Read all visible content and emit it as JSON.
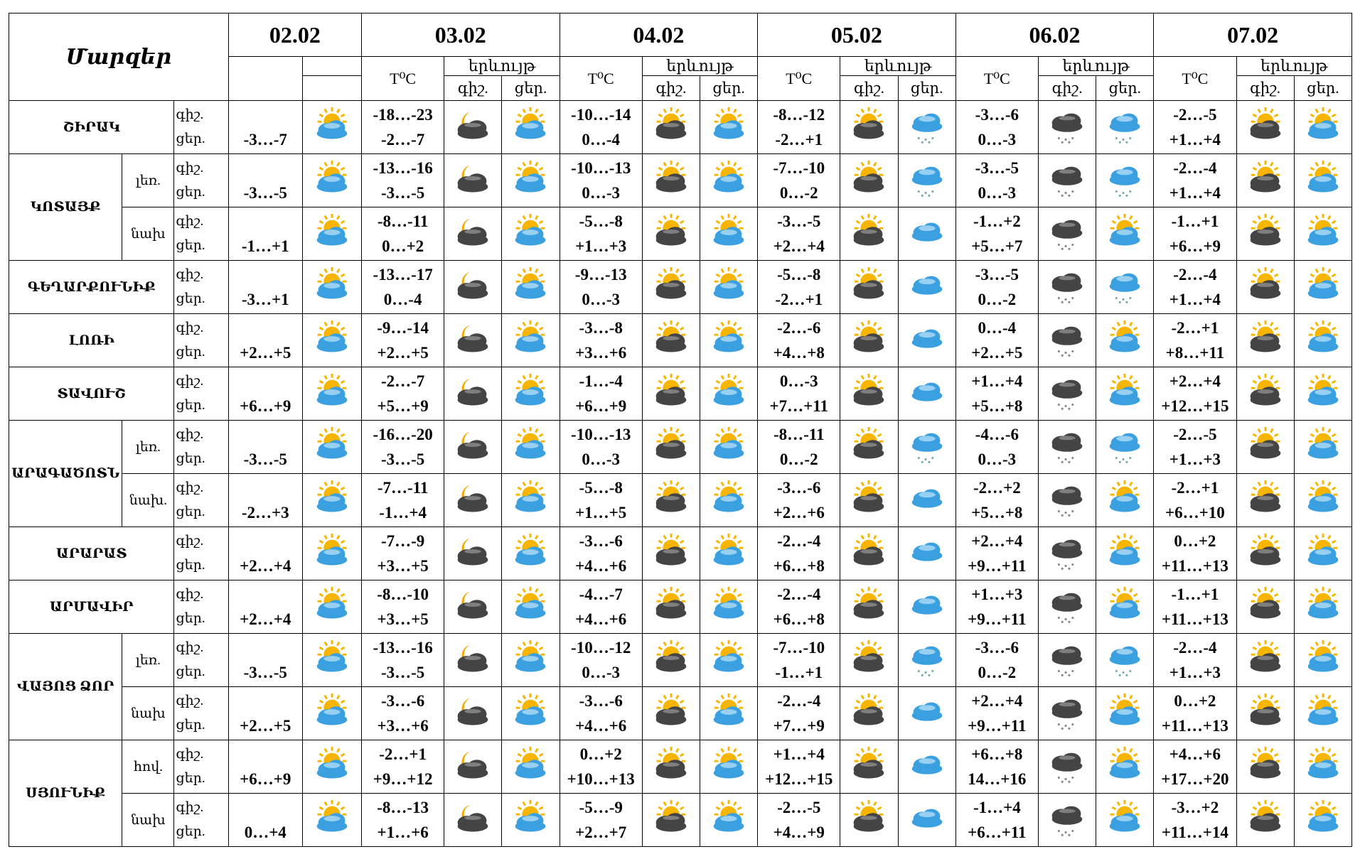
{
  "header": {
    "title": "Մարզեր",
    "dates": [
      "02.02",
      "03.02",
      "04.02",
      "05.02",
      "06.02",
      "07.02"
    ],
    "temp": "T⁰C",
    "phenomenon": "երևույթ",
    "night": "գիշ.",
    "day": "ցեր."
  },
  "regions": [
    {
      "name": "ՇԻՐԱԿ",
      "rows": [
        {
          "sub": null,
          "d0": "-3…-7",
          "days": [
            [
              "-18…-23",
              "-2…-7"
            ],
            [
              "-10…-14",
              "0…-4"
            ],
            [
              "-8…-12",
              "-2…+1"
            ],
            [
              "-3…-6",
              "0…-3"
            ],
            [
              "-2…-5",
              "+1…+4"
            ]
          ]
        }
      ]
    },
    {
      "name": "ԿՈՏԱՅՔ",
      "rows": [
        {
          "sub": "լեռ.",
          "d0": "-3…-5",
          "days": [
            [
              "-13…-16",
              "-3…-5"
            ],
            [
              "-10…-13",
              "0…-3"
            ],
            [
              "-7…-10",
              "0…-2"
            ],
            [
              "-3…-5",
              "0…-3"
            ],
            [
              "-2…-4",
              "+1…+4"
            ]
          ]
        },
        {
          "sub": "նախ",
          "d0": "-1…+1",
          "days": [
            [
              "-8…-11",
              "0…+2"
            ],
            [
              "-5…-8",
              "+1…+3"
            ],
            [
              "-3…-5",
              "+2…+4"
            ],
            [
              "-1…+2",
              "+5…+7"
            ],
            [
              "-1…+1",
              "+6…+9"
            ]
          ]
        }
      ]
    },
    {
      "name": "ԳԵՂԱՐՔՈՒՆԻՔ",
      "rows": [
        {
          "sub": null,
          "d0": "-3…+1",
          "days": [
            [
              "-13…-17",
              "0…-4"
            ],
            [
              "-9…-13",
              "0…-3"
            ],
            [
              "-5…-8",
              "-2…+1"
            ],
            [
              "-3…-5",
              "0…-2"
            ],
            [
              "-2…-4",
              "+1…+4"
            ]
          ]
        }
      ]
    },
    {
      "name": "ԼՈՌԻ",
      "rows": [
        {
          "sub": null,
          "d0": "+2…+5",
          "days": [
            [
              "-9…-14",
              "+2…+5"
            ],
            [
              "-3…-8",
              "+3…+6"
            ],
            [
              "-2…-6",
              "+4…+8"
            ],
            [
              "0…-4",
              "+2…+5"
            ],
            [
              "-2…+1",
              "+8…+11"
            ]
          ]
        }
      ]
    },
    {
      "name": "ՏԱՎՈՒՇ",
      "rows": [
        {
          "sub": null,
          "d0": "+6…+9",
          "days": [
            [
              "-2…-7",
              "+5…+9"
            ],
            [
              "-1…-4",
              "+6…+9"
            ],
            [
              "0…-3",
              "+7…+11"
            ],
            [
              "+1…+4",
              "+5…+8"
            ],
            [
              "+2…+4",
              "+12…+15"
            ]
          ]
        }
      ]
    },
    {
      "name": "ԱՐԱԳԱԾՈՏՆ",
      "rows": [
        {
          "sub": "լեռ.",
          "d0": "-3…-5",
          "days": [
            [
              "-16…-20",
              "-3…-5"
            ],
            [
              "-10…-13",
              "0…-3"
            ],
            [
              "-8…-11",
              "0…-2"
            ],
            [
              "-4…-6",
              "0…-3"
            ],
            [
              "-2…-5",
              "+1…+3"
            ]
          ]
        },
        {
          "sub": "նախ.",
          "d0": "-2…+3",
          "days": [
            [
              "-7…-11",
              "-1…+4"
            ],
            [
              "-5…-8",
              "+1…+5"
            ],
            [
              "-3…-6",
              "+2…+6"
            ],
            [
              "-2…+2",
              "+5…+8"
            ],
            [
              "-2…+1",
              "+6…+10"
            ]
          ]
        }
      ]
    },
    {
      "name": "ԱՐԱՐԱՏ",
      "rows": [
        {
          "sub": null,
          "d0": "+2…+4",
          "days": [
            [
              "-7…-9",
              "+3…+5"
            ],
            [
              "-3…-6",
              "+4…+6"
            ],
            [
              "-2…-4",
              "+6…+8"
            ],
            [
              "+2…+4",
              "+9…+11"
            ],
            [
              "0…+2",
              "+11…+13"
            ]
          ]
        }
      ]
    },
    {
      "name": "ԱՐՄԱՎԻՐ",
      "rows": [
        {
          "sub": null,
          "d0": "+2…+4",
          "days": [
            [
              "-8…-10",
              "+3…+5"
            ],
            [
              "-4…-7",
              "+4…+6"
            ],
            [
              "-2…-4",
              "+6…+8"
            ],
            [
              "+1…+3",
              "+9…+11"
            ],
            [
              "-1…+1",
              "+11…+13"
            ]
          ]
        }
      ]
    },
    {
      "name": "ՎԱՅՈՑ ՁՈՐ",
      "rows": [
        {
          "sub": "լեռ.",
          "d0": "-3…-5",
          "days": [
            [
              "-13…-16",
              "-3…-5"
            ],
            [
              "-10…-12",
              "0…-3"
            ],
            [
              "-7…-10",
              "-1…+1"
            ],
            [
              "-3…-6",
              "0…-2"
            ],
            [
              "-2…-4",
              "+1…+3"
            ]
          ]
        },
        {
          "sub": "նախ",
          "d0": "+2…+5",
          "days": [
            [
              "-3…-6",
              "+3…+6"
            ],
            [
              "-3…-6",
              "+4…+6"
            ],
            [
              "-2…-4",
              "+7…+9"
            ],
            [
              "+2…+4",
              "+9…+11"
            ],
            [
              "0…+2",
              "+11…+13"
            ]
          ]
        }
      ]
    },
    {
      "name": "ՍՅՈՒՆԻՔ",
      "rows": [
        {
          "sub": "հով.",
          "d0": "+6…+9",
          "days": [
            [
              "-2…+1",
              "+9…+12"
            ],
            [
              "0…+2",
              "+10…+13"
            ],
            [
              "+1…+4",
              "+12…+15"
            ],
            [
              "+6…+8",
              "14…+16"
            ],
            [
              "+4…+6",
              "+17…+20"
            ]
          ]
        },
        {
          "sub": "նախ",
          "d0": "0…+4",
          "days": [
            [
              "-8…-13",
              "+1…+6"
            ],
            [
              "-5…-9",
              "+2…+7"
            ],
            [
              "-2…-5",
              "+4…+9"
            ],
            [
              "-1…+4",
              "+6…+11"
            ],
            [
              "-3…+2",
              "+11…+14"
            ]
          ]
        }
      ]
    }
  ]
}
